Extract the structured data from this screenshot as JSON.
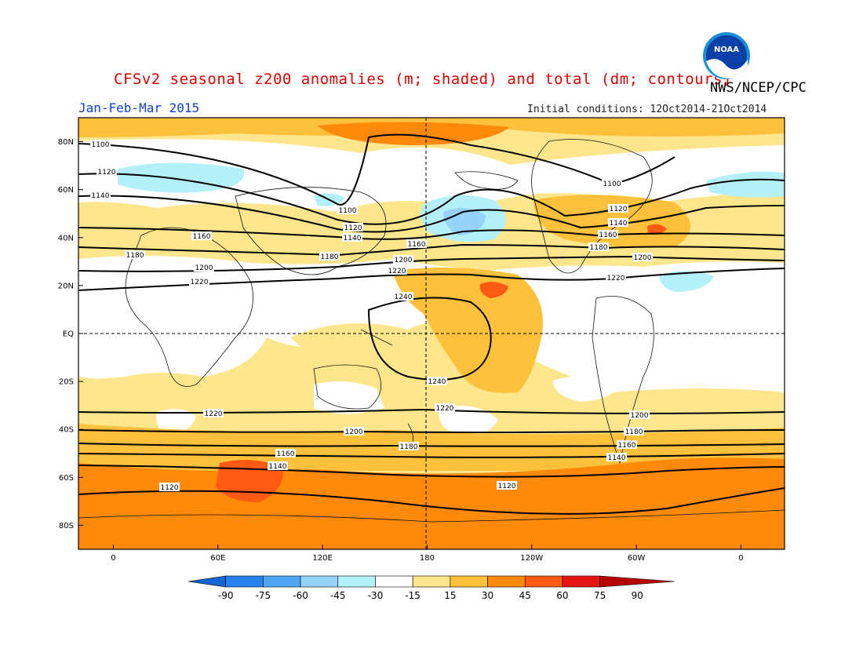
{
  "header": {
    "title": "CFSv2 seasonal z200 anomalies (m; shaded) and total (dm; contours)",
    "agency": "NWS/NCEP/CPC",
    "period": "Jan-Feb-Mar 2015",
    "initial_conditions": "Initial conditions: 12Oct2014-21Oct2014",
    "logo_text": "NOAA"
  },
  "map": {
    "lat_labels": [
      "80N",
      "60N",
      "40N",
      "20N",
      "EQ",
      "20S",
      "40S",
      "60S",
      "80S"
    ],
    "lat_values": [
      80,
      60,
      40,
      20,
      0,
      -20,
      -40,
      -60,
      -80
    ],
    "lon_labels": [
      "0",
      "60E",
      "120E",
      "180",
      "120W",
      "60W",
      "0"
    ],
    "lon_values": [
      0,
      60,
      120,
      180,
      240,
      300,
      360
    ],
    "lon_range": [
      -20,
      385
    ],
    "lat_range": [
      -90,
      90
    ],
    "contour_labels": [
      "1100",
      "1100",
      "1100",
      "1120",
      "1120",
      "1120",
      "1140",
      "1140",
      "1140",
      "1160",
      "1160",
      "1160",
      "1180",
      "1180",
      "1180",
      "1200",
      "1200",
      "1200",
      "1220",
      "1220",
      "1220",
      "1240",
      "1240",
      "1220",
      "1220",
      "1200",
      "1200",
      "1180",
      "1180",
      "1160",
      "1160",
      "1140",
      "1140",
      "1120",
      "1120"
    ]
  },
  "legend": {
    "values": [
      "-90",
      "-75",
      "-60",
      "-45",
      "-30",
      "-15",
      "15",
      "30",
      "45",
      "60",
      "75",
      "90"
    ],
    "colors": [
      "#1464d2",
      "#2882f0",
      "#50a5f5",
      "#96d2fa",
      "#b4f0fa",
      "#ffffff",
      "#ffe68c",
      "#ffc03c",
      "#ff8a0a",
      "#ff5a14",
      "#e61414",
      "#b40000"
    ]
  }
}
